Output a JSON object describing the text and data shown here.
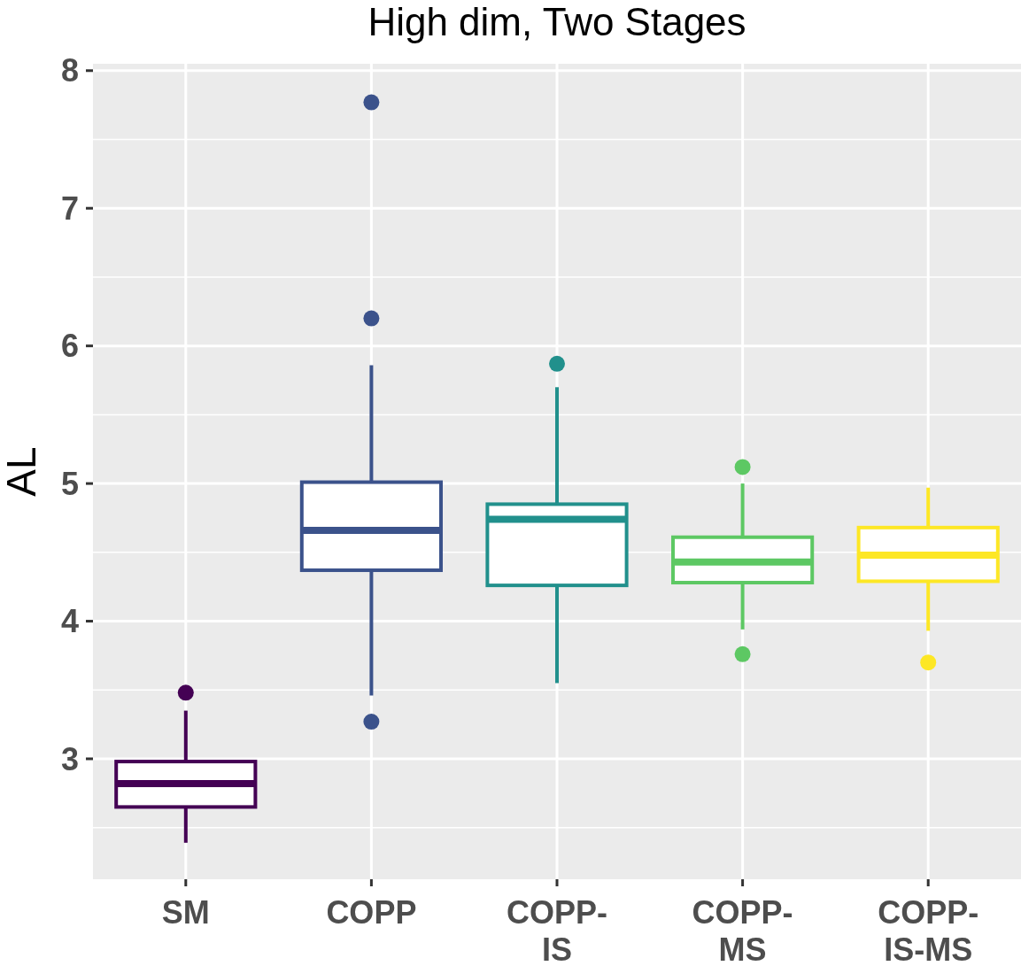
{
  "chart_data": {
    "type": "box",
    "title": "High dim, Two Stages",
    "ylabel": "AL",
    "categories": [
      "SM",
      "COPP",
      "COPP-IS",
      "COPP-MS",
      "COPP-IS-MS"
    ],
    "colors": [
      "#440154",
      "#3b528b",
      "#21908c",
      "#5dc863",
      "#fde725"
    ],
    "boxes": [
      {
        "low": 2.39,
        "q1": 2.65,
        "median": 2.82,
        "q3": 2.98,
        "high": 3.35,
        "outliers": [
          3.48
        ]
      },
      {
        "low": 3.46,
        "q1": 4.37,
        "median": 4.66,
        "q3": 5.01,
        "high": 5.86,
        "outliers": [
          7.77,
          6.2,
          3.27
        ]
      },
      {
        "low": 3.55,
        "q1": 4.26,
        "median": 4.74,
        "q3": 4.85,
        "high": 5.7,
        "outliers": [
          5.87
        ]
      },
      {
        "low": 3.94,
        "q1": 4.28,
        "median": 4.43,
        "q3": 4.61,
        "high": 5.0,
        "outliers": [
          5.12,
          3.76
        ]
      },
      {
        "low": 3.93,
        "q1": 4.29,
        "median": 4.48,
        "q3": 4.68,
        "high": 4.97,
        "outliers": [
          3.7
        ]
      }
    ],
    "ylim": [
      2.125,
      8.05
    ],
    "yticks": [
      3,
      4,
      5,
      6,
      7,
      8
    ],
    "grid": true
  }
}
